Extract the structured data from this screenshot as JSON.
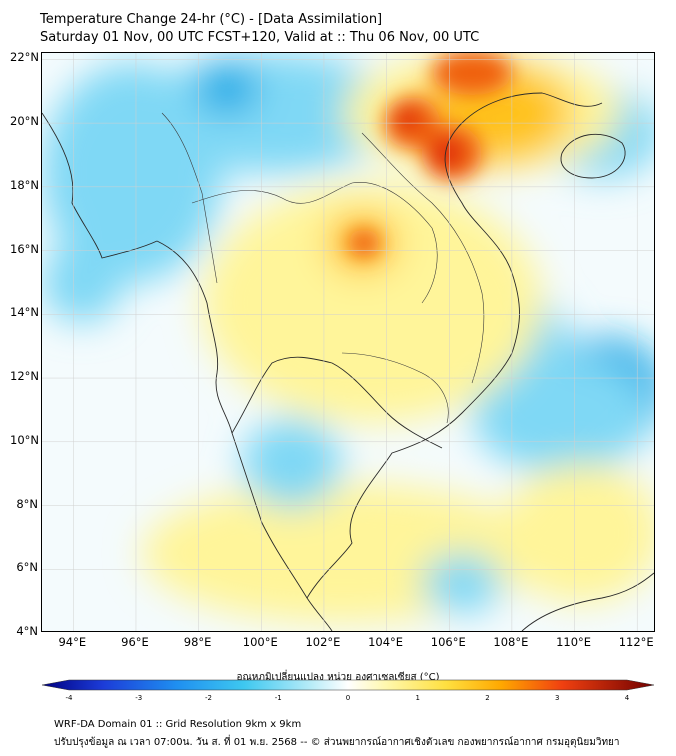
{
  "title": {
    "line1": "Temperature Change 24-hr (°C) - [Data Assimilation]",
    "line2": "Saturday 01 Nov, 00 UTC FCST+120, Valid at :: Thu 06 Nov, 00 UTC"
  },
  "axes": {
    "lat_labels": [
      "22°N",
      "20°N",
      "18°N",
      "16°N",
      "14°N",
      "12°N",
      "10°N",
      "8°N",
      "6°N",
      "4°N"
    ],
    "lon_labels": [
      "94°E",
      "96°E",
      "98°E",
      "100°E",
      "102°E",
      "104°E",
      "106°E",
      "108°E",
      "110°E",
      "112°E"
    ],
    "lat_range": [
      4,
      22.2
    ],
    "lon_range": [
      93,
      112.6
    ]
  },
  "colorbar": {
    "title": "อุณหภูมิเปลี่ยนแปลง หน่วย องศาเซลเซียส (°C)",
    "ticks": [
      "-4",
      "-3",
      "-2",
      "-1",
      "0",
      "1",
      "2",
      "3",
      "4"
    ],
    "range": [
      -4,
      4
    ]
  },
  "footer": {
    "line1": "WRF-DA Domain 01 :: Grid Resolution 9km x 9km",
    "line2": "ปรับปรุงข้อมูล ณ เวลา 07:00น. วัน ส. ที่ 01 พ.ย. 2568 -- © ส่วนพยากรณ์อากาศเชิงตัวเลข กองพยากรณ์อากาศ กรมอุตุนิยมวิทยา"
  },
  "colors": {
    "strong_cool": "#00a8e6",
    "cool": "#7fd8f5",
    "neutral": "#f4fbfd",
    "warm": "#fff59a",
    "hot": "#ffc21a",
    "very_hot": "#f06010",
    "extreme": "#e02a0a"
  }
}
